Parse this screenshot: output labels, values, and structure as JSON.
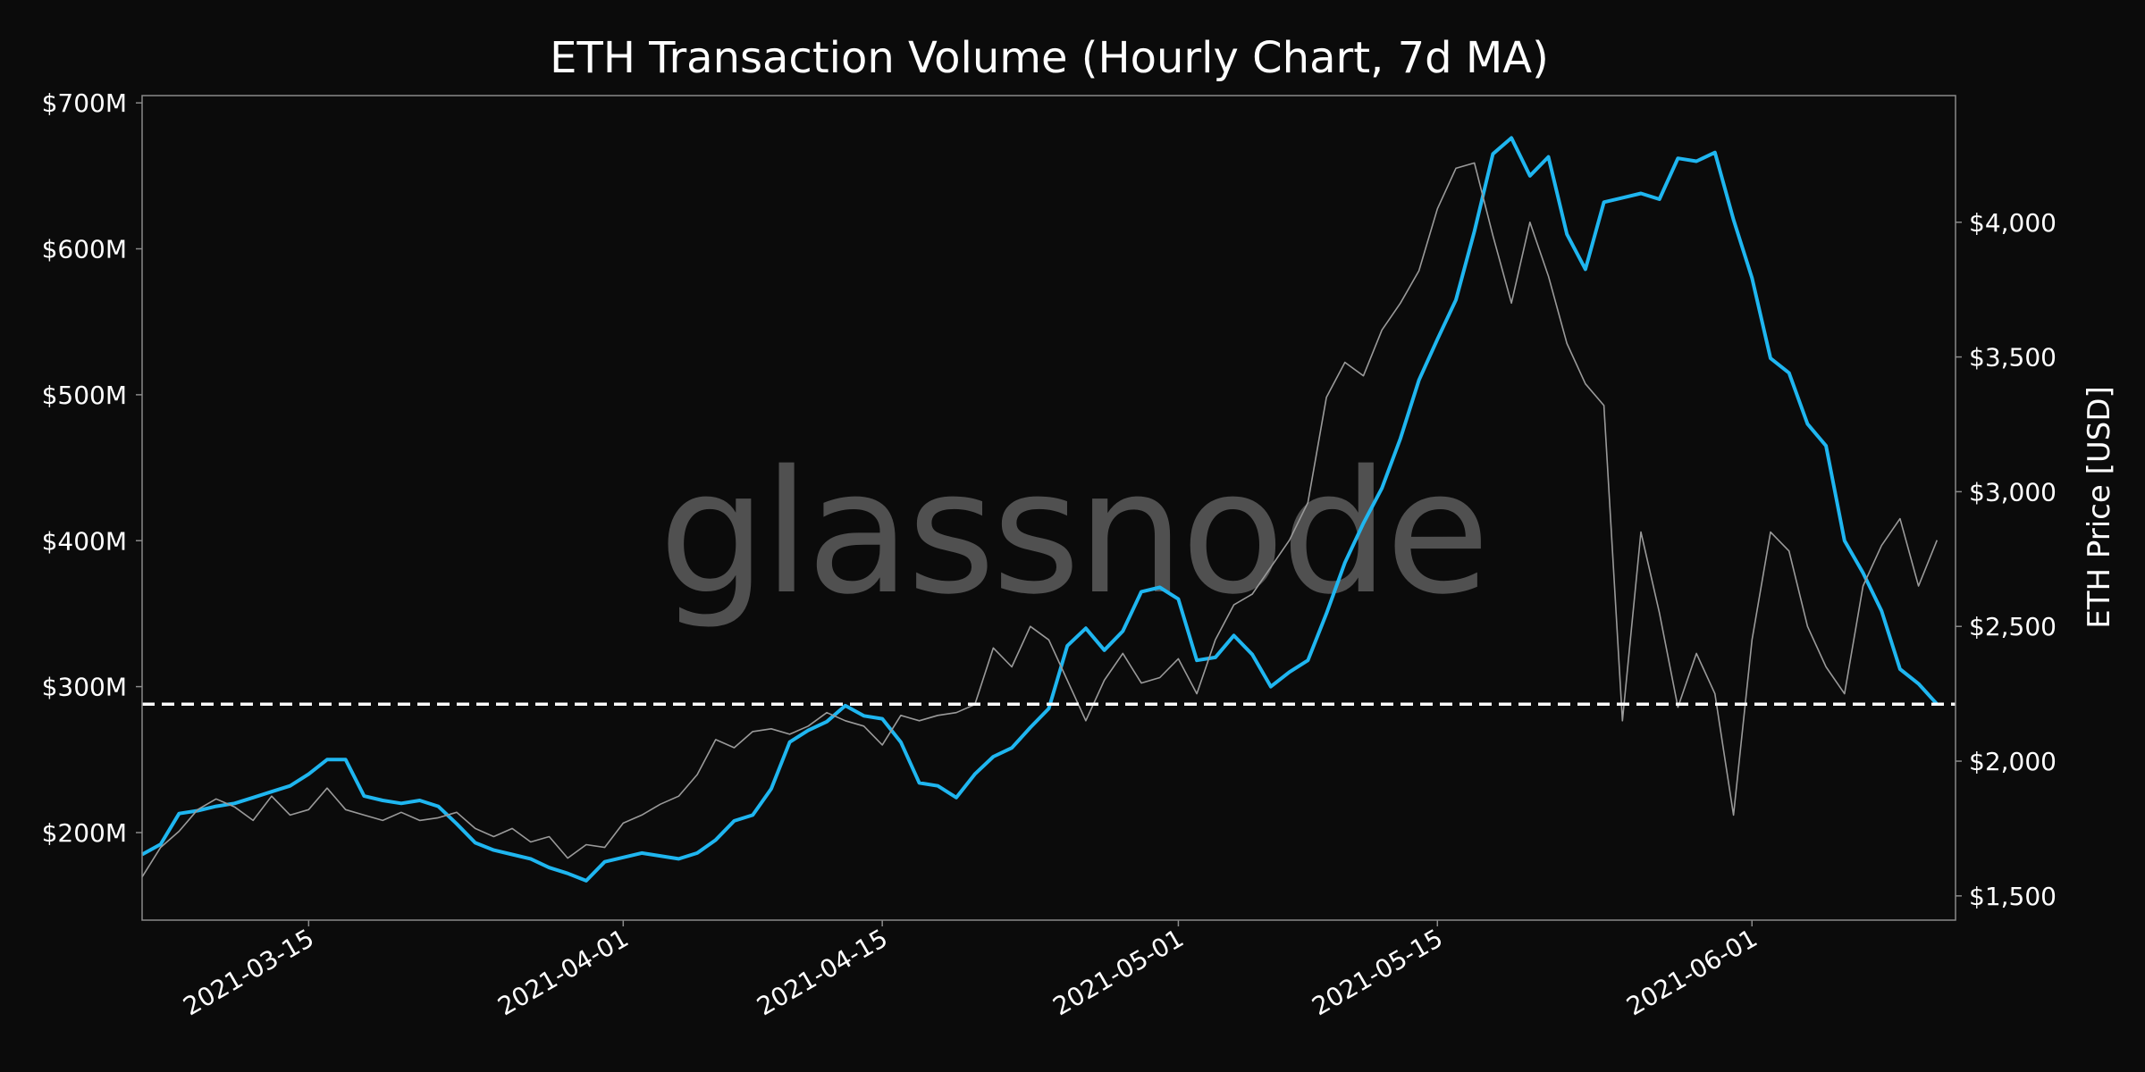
{
  "chart_data": {
    "type": "line",
    "title": "ETH Transaction Volume (Hourly Chart, 7d MA)",
    "watermark": "glassnode",
    "x_ticks": [
      {
        "date": "2021-03-15",
        "label": "2021-03-15"
      },
      {
        "date": "2021-04-01",
        "label": "2021-04-01"
      },
      {
        "date": "2021-04-15",
        "label": "2021-04-15"
      },
      {
        "date": "2021-05-01",
        "label": "2021-05-01"
      },
      {
        "date": "2021-05-15",
        "label": "2021-05-15"
      },
      {
        "date": "2021-06-01",
        "label": "2021-06-01"
      }
    ],
    "xlim": [
      "2021-03-06",
      "2021-06-12"
    ],
    "left_axis": {
      "label": "",
      "ylim": [
        140,
        705
      ],
      "unit": "millions USD",
      "ticks": [
        {
          "value": 200,
          "label": "$200M"
        },
        {
          "value": 300,
          "label": "$300M"
        },
        {
          "value": 400,
          "label": "$400M"
        },
        {
          "value": 500,
          "label": "$500M"
        },
        {
          "value": 600,
          "label": "$600M"
        },
        {
          "value": 700,
          "label": "$700M"
        }
      ]
    },
    "right_axis": {
      "label": "ETH Price [USD]",
      "ylim": [
        1410,
        4470
      ],
      "scale": "linear",
      "ticks": [
        {
          "value": 1500,
          "label": "$1,500"
        },
        {
          "value": 2000,
          "label": "$2,000"
        },
        {
          "value": 2500,
          "label": "$2,500"
        },
        {
          "value": 3000,
          "label": "$3,000"
        },
        {
          "value": 3500,
          "label": "$3,500"
        },
        {
          "value": 4000,
          "label": "$4,000"
        }
      ]
    },
    "reference_line": {
      "axis": "left",
      "value": 288,
      "style": "dashed",
      "color": "#ffffff"
    },
    "grid": false,
    "series": [
      {
        "axis": "left",
        "color": "#1fb6f0",
        "points": [
          [
            "2021-03-06",
            185
          ],
          [
            "2021-03-07",
            192
          ],
          [
            "2021-03-08",
            213
          ],
          [
            "2021-03-09",
            215
          ],
          [
            "2021-03-10",
            218
          ],
          [
            "2021-03-11",
            220
          ],
          [
            "2021-03-12",
            224
          ],
          [
            "2021-03-13",
            228
          ],
          [
            "2021-03-14",
            232
          ],
          [
            "2021-03-15",
            240
          ],
          [
            "2021-03-16",
            250
          ],
          [
            "2021-03-17",
            250
          ],
          [
            "2021-03-18",
            225
          ],
          [
            "2021-03-19",
            222
          ],
          [
            "2021-03-20",
            220
          ],
          [
            "2021-03-21",
            222
          ],
          [
            "2021-03-22",
            218
          ],
          [
            "2021-03-23",
            206
          ],
          [
            "2021-03-24",
            193
          ],
          [
            "2021-03-25",
            188
          ],
          [
            "2021-03-26",
            185
          ],
          [
            "2021-03-27",
            182
          ],
          [
            "2021-03-28",
            176
          ],
          [
            "2021-03-29",
            172
          ],
          [
            "2021-03-30",
            167
          ],
          [
            "2021-03-31",
            180
          ],
          [
            "2021-04-01",
            183
          ],
          [
            "2021-04-02",
            186
          ],
          [
            "2021-04-03",
            184
          ],
          [
            "2021-04-04",
            182
          ],
          [
            "2021-04-05",
            186
          ],
          [
            "2021-04-06",
            195
          ],
          [
            "2021-04-07",
            208
          ],
          [
            "2021-04-08",
            212
          ],
          [
            "2021-04-09",
            230
          ],
          [
            "2021-04-10",
            262
          ],
          [
            "2021-04-11",
            270
          ],
          [
            "2021-04-12",
            276
          ],
          [
            "2021-04-13",
            287
          ],
          [
            "2021-04-14",
            280
          ],
          [
            "2021-04-15",
            278
          ],
          [
            "2021-04-16",
            262
          ],
          [
            "2021-04-17",
            234
          ],
          [
            "2021-04-18",
            232
          ],
          [
            "2021-04-19",
            224
          ],
          [
            "2021-04-20",
            240
          ],
          [
            "2021-04-21",
            252
          ],
          [
            "2021-04-22",
            258
          ],
          [
            "2021-04-23",
            272
          ],
          [
            "2021-04-24",
            285
          ],
          [
            "2021-04-25",
            328
          ],
          [
            "2021-04-26",
            340
          ],
          [
            "2021-04-27",
            325
          ],
          [
            "2021-04-28",
            338
          ],
          [
            "2021-04-29",
            365
          ],
          [
            "2021-04-30",
            368
          ],
          [
            "2021-05-01",
            360
          ],
          [
            "2021-05-02",
            318
          ],
          [
            "2021-05-03",
            320
          ],
          [
            "2021-05-04",
            335
          ],
          [
            "2021-05-05",
            322
          ],
          [
            "2021-05-06",
            300
          ],
          [
            "2021-05-07",
            310
          ],
          [
            "2021-05-08",
            318
          ],
          [
            "2021-05-09",
            350
          ],
          [
            "2021-05-10",
            385
          ],
          [
            "2021-05-11",
            412
          ],
          [
            "2021-05-12",
            436
          ],
          [
            "2021-05-13",
            470
          ],
          [
            "2021-05-14",
            510
          ],
          [
            "2021-05-15",
            538
          ],
          [
            "2021-05-16",
            565
          ],
          [
            "2021-05-17",
            612
          ],
          [
            "2021-05-18",
            665
          ],
          [
            "2021-05-19",
            676
          ],
          [
            "2021-05-20",
            650
          ],
          [
            "2021-05-21",
            663
          ],
          [
            "2021-05-22",
            610
          ],
          [
            "2021-05-23",
            586
          ],
          [
            "2021-05-24",
            632
          ],
          [
            "2021-05-25",
            635
          ],
          [
            "2021-05-26",
            638
          ],
          [
            "2021-05-27",
            634
          ],
          [
            "2021-05-28",
            662
          ],
          [
            "2021-05-29",
            660
          ],
          [
            "2021-05-30",
            666
          ],
          [
            "2021-05-31",
            620
          ],
          [
            "2021-06-01",
            580
          ],
          [
            "2021-06-02",
            525
          ],
          [
            "2021-06-03",
            515
          ],
          [
            "2021-06-04",
            480
          ],
          [
            "2021-06-05",
            465
          ],
          [
            "2021-06-06",
            400
          ],
          [
            "2021-06-07",
            378
          ],
          [
            "2021-06-08",
            352
          ],
          [
            "2021-06-09",
            312
          ],
          [
            "2021-06-10",
            302
          ],
          [
            "2021-06-11",
            288
          ]
        ]
      },
      {
        "axis": "right",
        "color": "#9a9a9a",
        "points": [
          [
            "2021-03-06",
            1570
          ],
          [
            "2021-03-07",
            1680
          ],
          [
            "2021-03-08",
            1740
          ],
          [
            "2021-03-09",
            1820
          ],
          [
            "2021-03-10",
            1860
          ],
          [
            "2021-03-11",
            1830
          ],
          [
            "2021-03-12",
            1780
          ],
          [
            "2021-03-13",
            1870
          ],
          [
            "2021-03-14",
            1800
          ],
          [
            "2021-03-15",
            1820
          ],
          [
            "2021-03-16",
            1900
          ],
          [
            "2021-03-17",
            1820
          ],
          [
            "2021-03-18",
            1800
          ],
          [
            "2021-03-19",
            1780
          ],
          [
            "2021-03-20",
            1810
          ],
          [
            "2021-03-21",
            1780
          ],
          [
            "2021-03-22",
            1790
          ],
          [
            "2021-03-23",
            1810
          ],
          [
            "2021-03-24",
            1750
          ],
          [
            "2021-03-25",
            1720
          ],
          [
            "2021-03-26",
            1750
          ],
          [
            "2021-03-27",
            1700
          ],
          [
            "2021-03-28",
            1720
          ],
          [
            "2021-03-29",
            1640
          ],
          [
            "2021-03-30",
            1690
          ],
          [
            "2021-03-31",
            1680
          ],
          [
            "2021-04-01",
            1770
          ],
          [
            "2021-04-02",
            1800
          ],
          [
            "2021-04-03",
            1840
          ],
          [
            "2021-04-04",
            1870
          ],
          [
            "2021-04-05",
            1950
          ],
          [
            "2021-04-06",
            2080
          ],
          [
            "2021-04-07",
            2050
          ],
          [
            "2021-04-08",
            2110
          ],
          [
            "2021-04-09",
            2120
          ],
          [
            "2021-04-10",
            2100
          ],
          [
            "2021-04-11",
            2130
          ],
          [
            "2021-04-12",
            2180
          ],
          [
            "2021-04-13",
            2150
          ],
          [
            "2021-04-14",
            2130
          ],
          [
            "2021-04-15",
            2060
          ],
          [
            "2021-04-16",
            2170
          ],
          [
            "2021-04-17",
            2150
          ],
          [
            "2021-04-18",
            2170
          ],
          [
            "2021-04-19",
            2180
          ],
          [
            "2021-04-20",
            2210
          ],
          [
            "2021-04-21",
            2420
          ],
          [
            "2021-04-22",
            2350
          ],
          [
            "2021-04-23",
            2500
          ],
          [
            "2021-04-24",
            2450
          ],
          [
            "2021-04-25",
            2300
          ],
          [
            "2021-04-26",
            2150
          ],
          [
            "2021-04-27",
            2300
          ],
          [
            "2021-04-28",
            2400
          ],
          [
            "2021-04-29",
            2290
          ],
          [
            "2021-04-30",
            2310
          ],
          [
            "2021-05-01",
            2380
          ],
          [
            "2021-05-02",
            2250
          ],
          [
            "2021-05-03",
            2450
          ],
          [
            "2021-05-04",
            2580
          ],
          [
            "2021-05-05",
            2620
          ],
          [
            "2021-05-06",
            2720
          ],
          [
            "2021-05-07",
            2820
          ],
          [
            "2021-05-08",
            2960
          ],
          [
            "2021-05-09",
            3350
          ],
          [
            "2021-05-10",
            3480
          ],
          [
            "2021-05-11",
            3430
          ],
          [
            "2021-05-12",
            3600
          ],
          [
            "2021-05-13",
            3700
          ],
          [
            "2021-05-14",
            3820
          ],
          [
            "2021-05-15",
            4050
          ],
          [
            "2021-05-16",
            4200
          ],
          [
            "2021-05-17",
            4220
          ],
          [
            "2021-05-18",
            3950
          ],
          [
            "2021-05-19",
            3700
          ],
          [
            "2021-05-20",
            4000
          ],
          [
            "2021-05-21",
            3800
          ],
          [
            "2021-05-22",
            3550
          ],
          [
            "2021-05-23",
            3400
          ],
          [
            "2021-05-24",
            3320
          ],
          [
            "2021-05-25",
            2150
          ],
          [
            "2021-05-26",
            2850
          ],
          [
            "2021-05-27",
            2550
          ],
          [
            "2021-05-28",
            2200
          ],
          [
            "2021-05-29",
            2400
          ],
          [
            "2021-05-30",
            2250
          ],
          [
            "2021-05-31",
            1800
          ],
          [
            "2021-06-01",
            2450
          ],
          [
            "2021-06-02",
            2850
          ],
          [
            "2021-06-03",
            2780
          ],
          [
            "2021-06-04",
            2500
          ],
          [
            "2021-06-05",
            2350
          ],
          [
            "2021-06-06",
            2250
          ],
          [
            "2021-06-07",
            2650
          ],
          [
            "2021-06-08",
            2800
          ],
          [
            "2021-06-09",
            2900
          ],
          [
            "2021-06-10",
            2650
          ],
          [
            "2021-06-11",
            2820
          ]
        ]
      }
    ]
  }
}
